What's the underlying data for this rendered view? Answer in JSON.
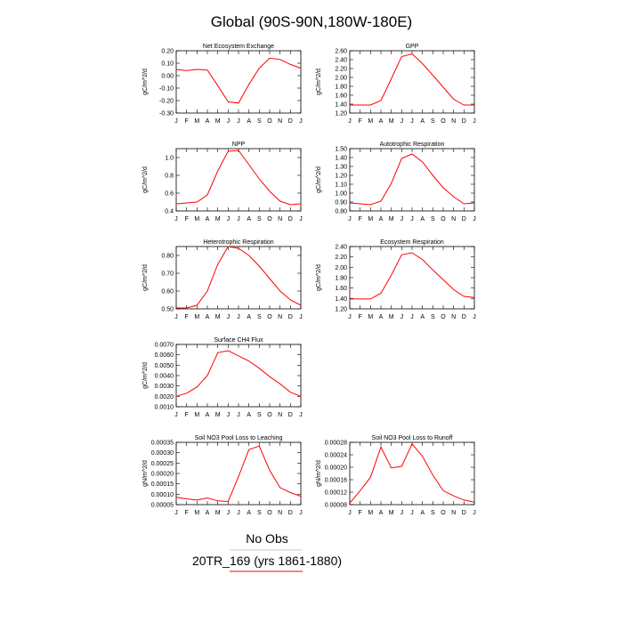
{
  "figure_title": "Global (90S-90N,180W-180E)",
  "legend": {
    "obs_label": "No Obs",
    "case_label": "20TR_169 (yrs 1861-1880)",
    "line_color": "#ff0000"
  },
  "months": [
    "J",
    "F",
    "M",
    "A",
    "M",
    "J",
    "J",
    "A",
    "S",
    "O",
    "N",
    "D",
    "J"
  ],
  "chart_data": [
    {
      "type": "line",
      "title": "Net Ecosystem Exchange",
      "ylabel": "gC/m^2/d",
      "ylim": [
        -0.3,
        0.2
      ],
      "yticks": [
        -0.3,
        -0.2,
        -0.1,
        0.0,
        0.1,
        0.2
      ],
      "ytick_labels": [
        "-0.30",
        "-0.20",
        "-0.10",
        "0.00",
        "0.10",
        "0.20"
      ],
      "series": [
        {
          "color": "#ff0000",
          "values": [
            0.05,
            0.04,
            0.05,
            0.045,
            -0.08,
            -0.21,
            -0.22,
            -0.07,
            0.06,
            0.14,
            0.13,
            0.09,
            0.06
          ]
        }
      ]
    },
    {
      "type": "line",
      "title": "GPP",
      "ylabel": "gC/m^2/d",
      "ylim": [
        1.2,
        2.6
      ],
      "yticks": [
        1.2,
        1.4,
        1.6,
        1.8,
        2.0,
        2.2,
        2.4,
        2.6
      ],
      "ytick_labels": [
        "1.20",
        "1.40",
        "1.60",
        "1.80",
        "2.00",
        "2.20",
        "2.40",
        "2.60"
      ],
      "series": [
        {
          "color": "#ff0000",
          "values": [
            1.38,
            1.38,
            1.38,
            1.48,
            1.97,
            2.47,
            2.53,
            2.31,
            2.05,
            1.78,
            1.51,
            1.38,
            1.38
          ]
        }
      ]
    },
    {
      "type": "line",
      "title": "NPP",
      "ylabel": "gC/m^2/d",
      "ylim": [
        0.4,
        1.1
      ],
      "yticks": [
        0.4,
        0.6,
        0.8,
        1.0
      ],
      "ytick_labels": [
        "0.4",
        "0.6",
        "0.8",
        "1.0"
      ],
      "series": [
        {
          "color": "#ff0000",
          "values": [
            0.48,
            0.49,
            0.5,
            0.58,
            0.85,
            1.07,
            1.08,
            0.92,
            0.76,
            0.62,
            0.51,
            0.47,
            0.48
          ]
        }
      ]
    },
    {
      "type": "line",
      "title": "Autotrophic Respiration",
      "ylabel": "gC/m^2/d",
      "ylim": [
        0.8,
        1.5
      ],
      "yticks": [
        0.8,
        0.9,
        1.0,
        1.1,
        1.2,
        1.3,
        1.4,
        1.5
      ],
      "ytick_labels": [
        "0.80",
        "0.90",
        "1.00",
        "1.10",
        "1.20",
        "1.30",
        "1.40",
        "1.50"
      ],
      "series": [
        {
          "color": "#ff0000",
          "values": [
            0.89,
            0.88,
            0.87,
            0.91,
            1.11,
            1.39,
            1.44,
            1.35,
            1.2,
            1.06,
            0.96,
            0.88,
            0.89
          ]
        }
      ]
    },
    {
      "type": "line",
      "title": "Heterotrophic Respiration",
      "ylabel": "gC/m^2/d",
      "ylim": [
        0.5,
        0.85
      ],
      "yticks": [
        0.5,
        0.6,
        0.7,
        0.8
      ],
      "ytick_labels": [
        "0.50",
        "0.60",
        "0.70",
        "0.80"
      ],
      "series": [
        {
          "color": "#ff0000",
          "values": [
            0.505,
            0.505,
            0.52,
            0.6,
            0.75,
            0.85,
            0.84,
            0.8,
            0.74,
            0.67,
            0.6,
            0.55,
            0.52
          ]
        }
      ]
    },
    {
      "type": "line",
      "title": "Ecosystem Respiration",
      "ylabel": "gC/m^2/d",
      "ylim": [
        1.2,
        2.4
      ],
      "yticks": [
        1.2,
        1.4,
        1.6,
        1.8,
        2.0,
        2.2,
        2.4
      ],
      "ytick_labels": [
        "1.20",
        "1.40",
        "1.60",
        "1.80",
        "2.00",
        "2.20",
        "2.40"
      ],
      "series": [
        {
          "color": "#ff0000",
          "values": [
            1.39,
            1.39,
            1.39,
            1.5,
            1.85,
            2.24,
            2.28,
            2.15,
            1.95,
            1.76,
            1.57,
            1.44,
            1.42
          ]
        }
      ]
    },
    {
      "type": "line",
      "title": "Surface CH4 Flux",
      "ylabel": "gC/m^2/d",
      "ylim": [
        0.001,
        0.007
      ],
      "yticks": [
        0.001,
        0.002,
        0.003,
        0.004,
        0.005,
        0.006,
        0.007
      ],
      "ytick_labels": [
        "0.0010",
        "0.0020",
        "0.0030",
        "0.0040",
        "0.0050",
        "0.0060",
        "0.0070"
      ],
      "series": [
        {
          "color": "#ff0000",
          "values": [
            0.002,
            0.0023,
            0.0029,
            0.004,
            0.0062,
            0.0064,
            0.0059,
            0.0054,
            0.0047,
            0.0039,
            0.0032,
            0.0024,
            0.002
          ]
        }
      ]
    },
    {
      "type": "line",
      "title": "Soil NO3 Pool Loss to Leaching",
      "ylabel": "gN/m^2/d",
      "ylim": [
        5e-05,
        0.00035
      ],
      "yticks": [
        5e-05,
        0.0001,
        0.00015,
        0.0002,
        0.00025,
        0.0003,
        0.00035
      ],
      "ytick_labels": [
        "0.00005",
        "0.00010",
        "0.00015",
        "0.00020",
        "0.00025",
        "0.00030",
        "0.00035"
      ],
      "series": [
        {
          "color": "#ff0000",
          "values": [
            8.5e-05,
            7.8e-05,
            7.2e-05,
            8.2e-05,
            6.8e-05,
            6.5e-05,
            0.000185,
            0.000315,
            0.000332,
            0.000215,
            0.000132,
            0.000108,
            9e-05
          ]
        }
      ]
    },
    {
      "type": "line",
      "title": "Soil NO3 Pool Loss to Runoff",
      "ylabel": "gN/m^2/d",
      "ylim": [
        8e-05,
        0.00028
      ],
      "yticks": [
        8e-05,
        0.00012,
        0.00016,
        0.0002,
        0.00024,
        0.00028
      ],
      "ytick_labels": [
        "0.00008",
        "0.00012",
        "0.00016",
        "0.00020",
        "0.00024",
        "0.00028"
      ],
      "series": [
        {
          "color": "#ff0000",
          "values": [
            8.5e-05,
            0.000125,
            0.000168,
            0.000265,
            0.000198,
            0.000203,
            0.000275,
            0.000235,
            0.000175,
            0.000125,
            0.000108,
            9.5e-05,
            8.8e-05
          ]
        }
      ]
    }
  ]
}
